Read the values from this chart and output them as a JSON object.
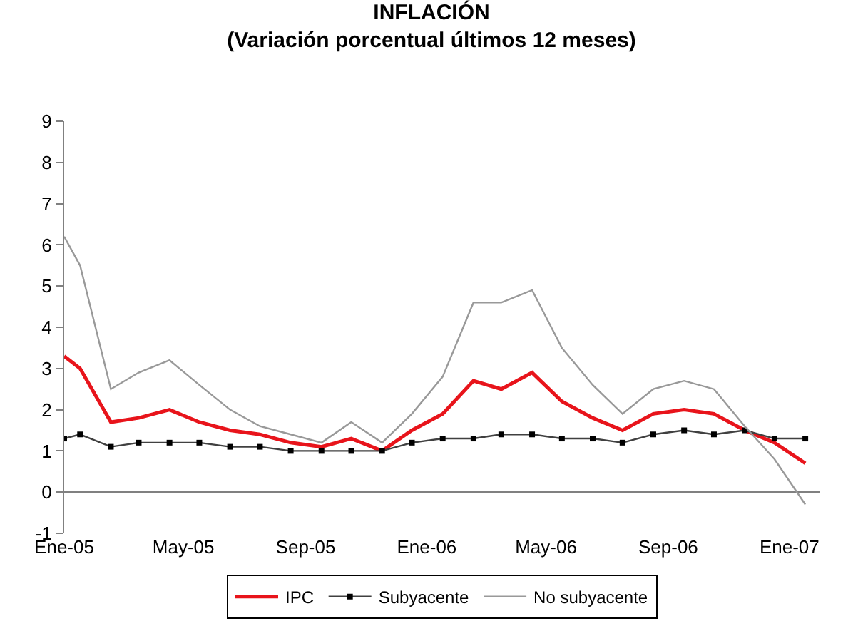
{
  "chart_data": {
    "type": "line",
    "title": "INFLACIÓN",
    "subtitle": "(Variación porcentual últimos 12 meses)",
    "x": [
      "2005-01-01",
      "2005-01-17",
      "2005-02-17",
      "2005-03-17",
      "2005-04-17",
      "2005-05-17",
      "2005-06-17",
      "2005-07-17",
      "2005-08-17",
      "2005-09-17",
      "2005-10-17",
      "2005-11-17",
      "2005-12-17",
      "2006-01-17",
      "2006-02-17",
      "2006-03-17",
      "2006-04-17",
      "2006-05-17",
      "2006-06-17",
      "2006-07-17",
      "2006-08-17",
      "2006-09-17",
      "2006-10-17",
      "2006-11-17",
      "2006-12-17",
      "2007-01-17"
    ],
    "series": [
      {
        "name": "IPC",
        "color": "#e8141b",
        "marker": "none",
        "values": [
          3.3,
          3.0,
          1.7,
          1.8,
          2.0,
          1.7,
          1.5,
          1.4,
          1.2,
          1.1,
          1.3,
          1.0,
          1.5,
          1.9,
          2.7,
          2.5,
          2.9,
          2.2,
          1.8,
          1.5,
          1.9,
          2.0,
          1.9,
          1.5,
          1.2,
          0.7
        ]
      },
      {
        "name": "Subyacente",
        "color": "#404040",
        "marker": "square",
        "values": [
          1.3,
          1.4,
          1.1,
          1.2,
          1.2,
          1.2,
          1.1,
          1.1,
          1.0,
          1.0,
          1.0,
          1.0,
          1.2,
          1.3,
          1.3,
          1.4,
          1.4,
          1.3,
          1.3,
          1.2,
          1.4,
          1.5,
          1.4,
          1.5,
          1.3,
          1.3
        ]
      },
      {
        "name": "No subyacente",
        "color": "#999999",
        "marker": "none",
        "values": [
          6.2,
          5.5,
          2.5,
          2.9,
          3.2,
          2.6,
          2.0,
          1.6,
          1.4,
          1.2,
          1.7,
          1.2,
          1.9,
          2.8,
          4.6,
          4.6,
          4.9,
          3.5,
          2.6,
          1.9,
          2.5,
          2.7,
          2.5,
          1.6,
          0.8,
          -0.3
        ]
      }
    ],
    "xlim": [
      "2005-01-01",
      "2007-02-01"
    ],
    "xticks": [
      {
        "value": "2005-01-01",
        "label": "Ene-05"
      },
      {
        "value": "2005-05-01",
        "label": "May-05"
      },
      {
        "value": "2005-09-01",
        "label": "Sep-05"
      },
      {
        "value": "2006-01-01",
        "label": "Ene-06"
      },
      {
        "value": "2006-05-01",
        "label": "May-06"
      },
      {
        "value": "2006-09-01",
        "label": "Sep-06"
      },
      {
        "value": "2007-01-01",
        "label": "Ene-07"
      }
    ],
    "ylim": [
      -1,
      9
    ],
    "yticks": [
      -1,
      0,
      1,
      2,
      3,
      4,
      5,
      6,
      7,
      8,
      9
    ],
    "legend": "bottom",
    "line_style": "solid"
  }
}
